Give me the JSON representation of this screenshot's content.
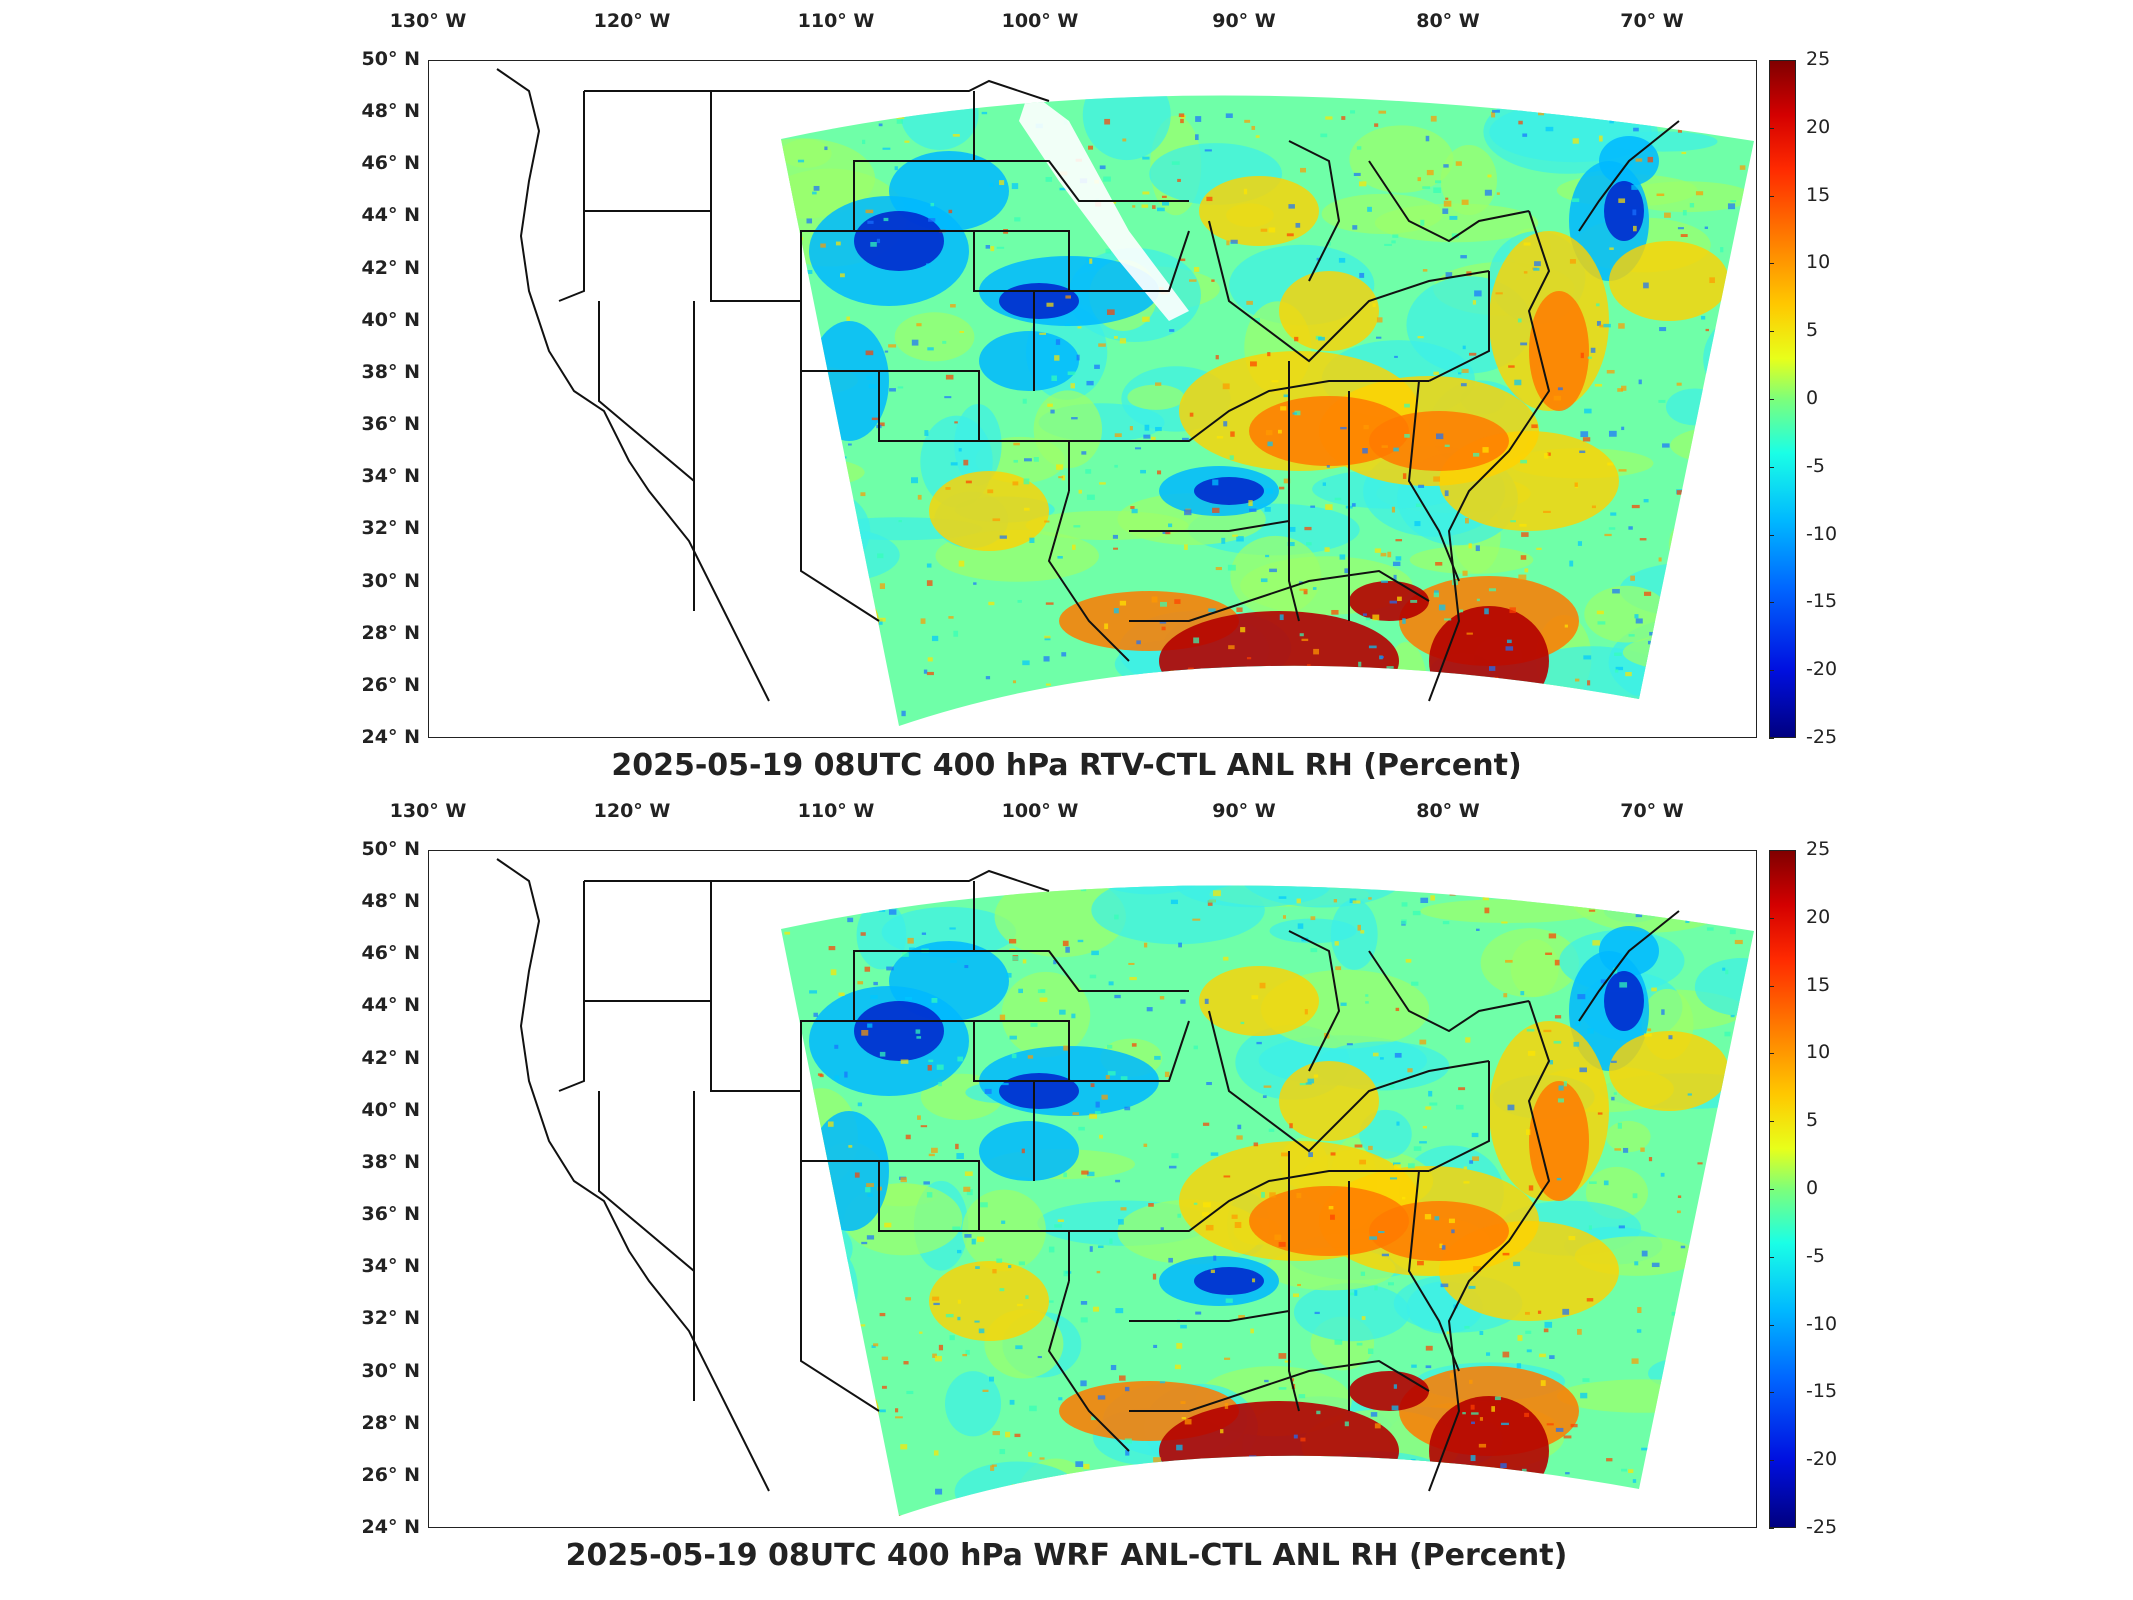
{
  "lon_labels": [
    "130° W",
    "120° W",
    "110° W",
    "100° W",
    "90° W",
    "80° W",
    "70° W"
  ],
  "lat_labels": [
    "50° N",
    "48° N",
    "46° N",
    "44° N",
    "42° N",
    "40° N",
    "38° N",
    "36° N",
    "34° N",
    "32° N",
    "30° N",
    "28° N",
    "26° N",
    "24° N"
  ],
  "colorbar": {
    "ticks": [
      "25",
      "20",
      "15",
      "10",
      "5",
      "0",
      "-5",
      "-10",
      "-15",
      "-20",
      "-25"
    ],
    "range": [
      -25,
      25
    ],
    "colormap": "jet"
  },
  "panels": [
    {
      "title": "2025-05-19 08UTC 400 hPa RTV-CTL ANL RH (Percent)"
    },
    {
      "title": "2025-05-19 08UTC 400 hPa WRF ANL-CTL ANL RH (Percent)"
    }
  ],
  "colors": {
    "positive_strong": "#b40000",
    "positive": "#ff7a00",
    "neutral": "#7dffa0",
    "negative": "#00b8ff",
    "negative_strong": "#0022cc",
    "outline": "#111111"
  }
}
